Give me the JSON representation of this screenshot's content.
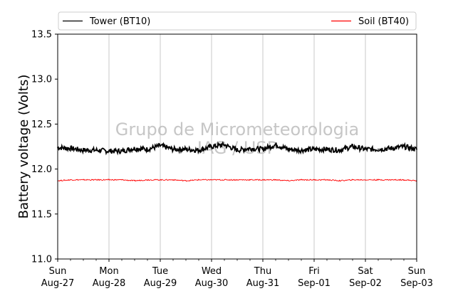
{
  "chart_data": {
    "type": "line",
    "ylabel": "Battery voltage (Volts)",
    "xlabel": "",
    "ylim": [
      11.0,
      13.5
    ],
    "yticks": [
      "11.0",
      "11.5",
      "12.0",
      "12.5",
      "13.0",
      "13.5"
    ],
    "x_range_days": [
      0,
      7
    ],
    "xticks": [
      {
        "day": "Sun",
        "date": "Aug-27"
      },
      {
        "day": "Mon",
        "date": "Aug-28"
      },
      {
        "day": "Tue",
        "date": "Aug-29"
      },
      {
        "day": "Wed",
        "date": "Aug-30"
      },
      {
        "day": "Thu",
        "date": "Aug-31"
      },
      {
        "day": "Fri",
        "date": "Sep-01"
      },
      {
        "day": "Sat",
        "date": "Sep-02"
      },
      {
        "day": "Sun",
        "date": "Sep-03"
      }
    ],
    "grid": "vertical",
    "legend_position": "top",
    "watermark": [
      "Grupo de Micrometeorologia",
      "IAG / USP"
    ],
    "series": [
      {
        "name": "Tower (BT10)",
        "color": "#000000",
        "x": [
          0,
          0.25,
          0.5,
          0.75,
          1.0,
          1.25,
          1.5,
          1.75,
          2.0,
          2.25,
          2.5,
          2.75,
          3.0,
          3.25,
          3.5,
          3.75,
          4.0,
          4.25,
          4.5,
          4.75,
          5.0,
          5.25,
          5.5,
          5.75,
          6.0,
          6.25,
          6.5,
          6.75,
          7.0
        ],
        "values": [
          12.24,
          12.23,
          12.21,
          12.21,
          12.2,
          12.2,
          12.23,
          12.22,
          12.26,
          12.22,
          12.22,
          12.21,
          12.25,
          12.27,
          12.21,
          12.23,
          12.22,
          12.27,
          12.22,
          12.21,
          12.22,
          12.22,
          12.21,
          12.25,
          12.22,
          12.22,
          12.23,
          12.25,
          12.22
        ]
      },
      {
        "name": "Soil (BT40)",
        "color": "#ff0000",
        "x": [
          0,
          0.25,
          0.5,
          0.75,
          1.0,
          1.25,
          1.5,
          1.75,
          2.0,
          2.25,
          2.5,
          2.75,
          3.0,
          3.25,
          3.5,
          3.75,
          4.0,
          4.25,
          4.5,
          4.75,
          5.0,
          5.25,
          5.5,
          5.75,
          6.0,
          6.25,
          6.5,
          6.75,
          7.0
        ],
        "values": [
          11.87,
          11.88,
          11.88,
          11.88,
          11.88,
          11.88,
          11.87,
          11.88,
          11.88,
          11.88,
          11.87,
          11.88,
          11.88,
          11.88,
          11.88,
          11.88,
          11.88,
          11.88,
          11.87,
          11.88,
          11.88,
          11.88,
          11.87,
          11.88,
          11.88,
          11.88,
          11.88,
          11.88,
          11.87
        ]
      }
    ]
  }
}
